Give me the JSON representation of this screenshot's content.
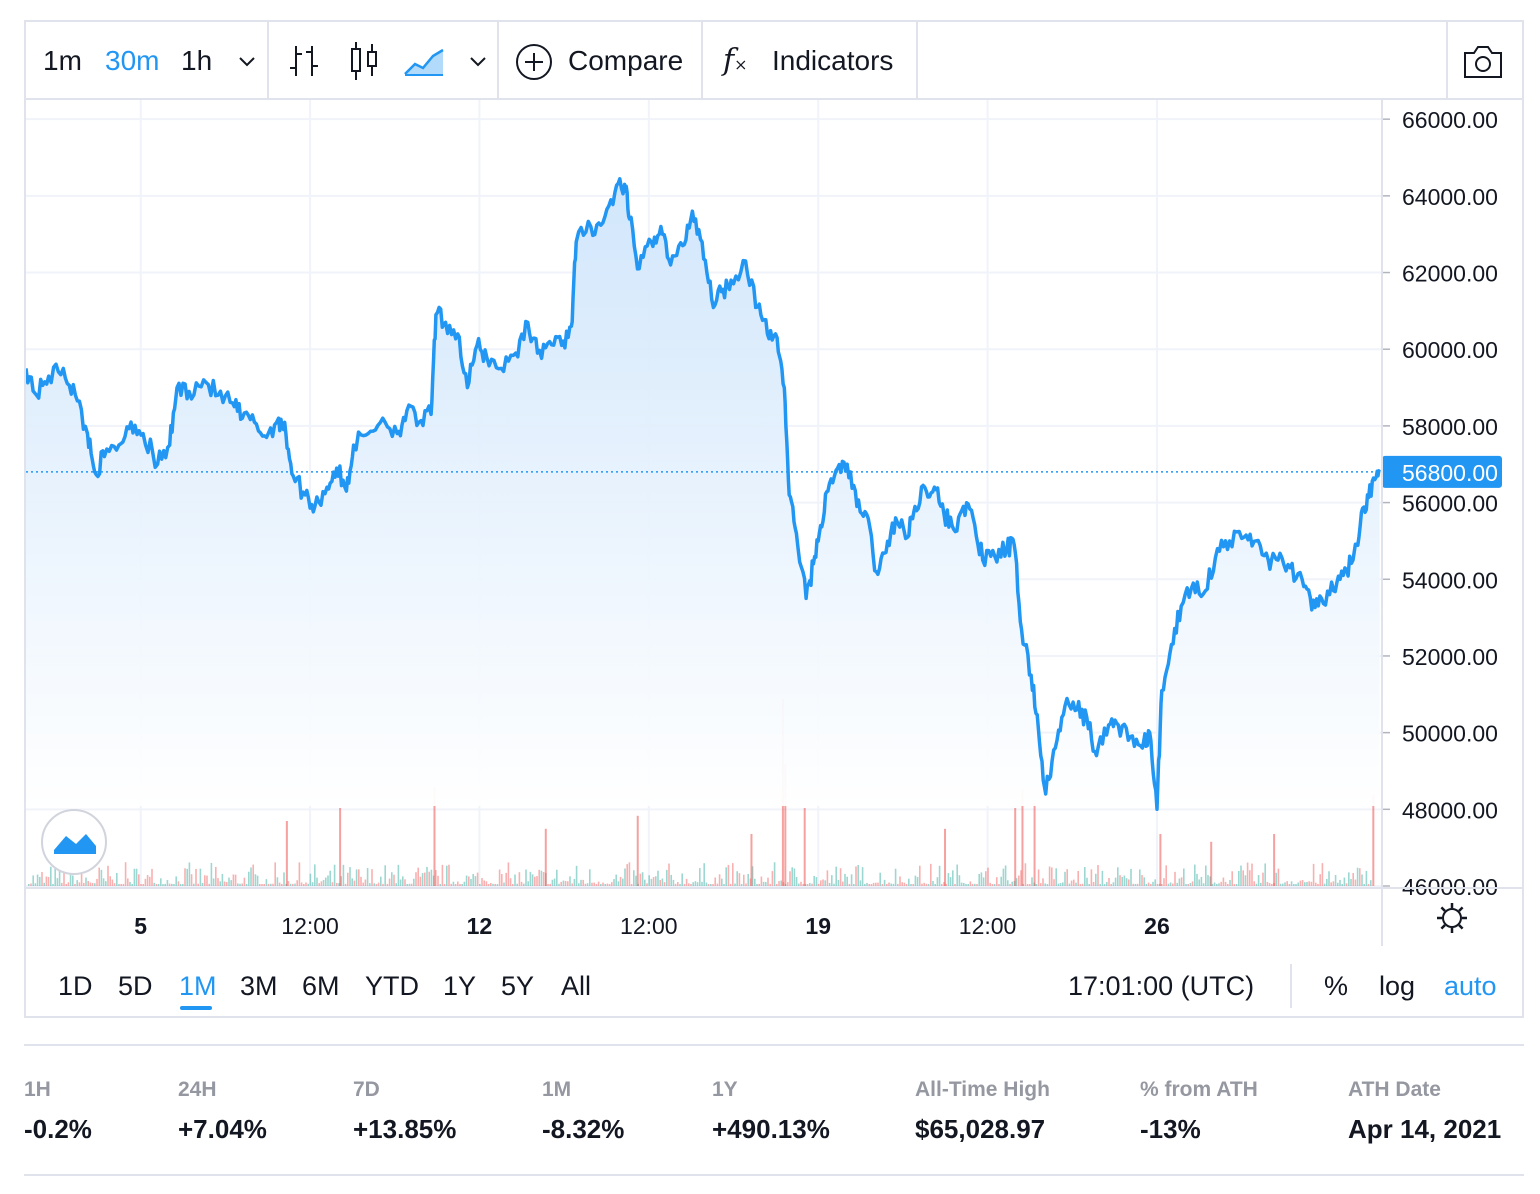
{
  "toolbar": {
    "intervals": [
      "1m",
      "30m",
      "1h"
    ],
    "active_interval": "30m",
    "compare_label": "Compare",
    "indicators_label": "Indicators",
    "icons": [
      "chevron-down-icon",
      "bars-icon",
      "candles-icon",
      "area-icon",
      "plus-circle-icon",
      "function-icon",
      "camera-icon"
    ]
  },
  "range_bar": {
    "ranges": [
      "1D",
      "5D",
      "1M",
      "3M",
      "6M",
      "YTD",
      "1Y",
      "5Y",
      "All"
    ],
    "active_range": "1M",
    "time_label": "17:01:00 (UTC)",
    "percent_label": "%",
    "log_label": "log",
    "auto_label": "auto"
  },
  "colors": {
    "line": "#2196f3",
    "area_top": "#cfe5fb",
    "volume_up": "#26a69a",
    "volume_down": "#ef5350",
    "last_price_tag": "#2196f3",
    "grid": "#f0f3fa"
  },
  "chart_data": {
    "type": "area",
    "title": "",
    "xlabel": "",
    "ylabel": "",
    "ylim": [
      46000,
      66500
    ],
    "yticks": [
      "66000.00",
      "64000.00",
      "62000.00",
      "60000.00",
      "58000.00",
      "56000.00",
      "54000.00",
      "52000.00",
      "50000.00",
      "48000.00",
      "46000.00"
    ],
    "xticks": [
      {
        "day": 5,
        "label": "5"
      },
      {
        "day": 8.5,
        "label": "12:00"
      },
      {
        "day": 12,
        "label": "12"
      },
      {
        "day": 15.5,
        "label": "12:00"
      },
      {
        "day": 19,
        "label": "19"
      },
      {
        "day": 22.5,
        "label": "12:00"
      },
      {
        "day": 26,
        "label": "26"
      }
    ],
    "xlim_days": [
      2.63,
      30.65
    ],
    "last_price": 56800,
    "last_price_label": "56800.00",
    "grid": true,
    "series": [
      {
        "values": [
          [
            2.63,
            59500
          ],
          [
            2.85,
            58800
          ],
          [
            3.1,
            59300
          ],
          [
            3.4,
            59500
          ],
          [
            3.65,
            58800
          ],
          [
            3.9,
            57800
          ],
          [
            4.05,
            56800
          ],
          [
            4.25,
            57200
          ],
          [
            4.55,
            57500
          ],
          [
            4.8,
            58100
          ],
          [
            5.05,
            57800
          ],
          [
            5.35,
            57000
          ],
          [
            5.6,
            57500
          ],
          [
            5.75,
            59000
          ],
          [
            6.0,
            58900
          ],
          [
            6.3,
            59200
          ],
          [
            6.6,
            58800
          ],
          [
            6.9,
            58600
          ],
          [
            7.1,
            58200
          ],
          [
            7.35,
            58100
          ],
          [
            7.6,
            57700
          ],
          [
            7.85,
            58200
          ],
          [
            8.0,
            57800
          ],
          [
            8.15,
            56700
          ],
          [
            8.4,
            56200
          ],
          [
            8.6,
            55900
          ],
          [
            8.85,
            56400
          ],
          [
            9.05,
            56900
          ],
          [
            9.25,
            56300
          ],
          [
            9.4,
            57500
          ],
          [
            9.7,
            57800
          ],
          [
            10.0,
            58200
          ],
          [
            10.3,
            57800
          ],
          [
            10.5,
            58400
          ],
          [
            10.75,
            58100
          ],
          [
            11.0,
            58300
          ],
          [
            11.1,
            60900
          ],
          [
            11.3,
            60700
          ],
          [
            11.55,
            60400
          ],
          [
            11.75,
            59000
          ],
          [
            11.95,
            60100
          ],
          [
            12.15,
            59800
          ],
          [
            12.45,
            59500
          ],
          [
            12.75,
            59900
          ],
          [
            13.0,
            60700
          ],
          [
            13.2,
            59900
          ],
          [
            13.45,
            60200
          ],
          [
            13.7,
            60100
          ],
          [
            13.9,
            60600
          ],
          [
            14.0,
            62800
          ],
          [
            14.3,
            63200
          ],
          [
            14.55,
            63300
          ],
          [
            14.8,
            64100
          ],
          [
            15.0,
            64300
          ],
          [
            15.1,
            63400
          ],
          [
            15.3,
            62100
          ],
          [
            15.55,
            62800
          ],
          [
            15.75,
            63200
          ],
          [
            15.95,
            62200
          ],
          [
            16.2,
            62700
          ],
          [
            16.4,
            63600
          ],
          [
            16.6,
            62800
          ],
          [
            16.8,
            61300
          ],
          [
            17.0,
            61500
          ],
          [
            17.2,
            61800
          ],
          [
            17.5,
            62300
          ],
          [
            17.75,
            61100
          ],
          [
            17.95,
            60400
          ],
          [
            18.15,
            60300
          ],
          [
            18.3,
            59000
          ],
          [
            18.4,
            56200
          ],
          [
            18.55,
            55200
          ],
          [
            18.75,
            53500
          ],
          [
            18.9,
            54400
          ],
          [
            19.05,
            55400
          ],
          [
            19.2,
            56300
          ],
          [
            19.4,
            56900
          ],
          [
            19.6,
            57000
          ],
          [
            19.8,
            55900
          ],
          [
            20.0,
            55700
          ],
          [
            20.2,
            54200
          ],
          [
            20.4,
            54700
          ],
          [
            20.6,
            55600
          ],
          [
            20.85,
            55100
          ],
          [
            21.0,
            55900
          ],
          [
            21.2,
            56400
          ],
          [
            21.4,
            56400
          ],
          [
            21.6,
            55700
          ],
          [
            21.8,
            55300
          ],
          [
            22.0,
            55900
          ],
          [
            22.2,
            55600
          ],
          [
            22.4,
            54500
          ],
          [
            22.65,
            54600
          ],
          [
            22.9,
            54800
          ],
          [
            23.05,
            54900
          ],
          [
            23.2,
            52700
          ],
          [
            23.4,
            51500
          ],
          [
            23.55,
            50100
          ],
          [
            23.7,
            48400
          ],
          [
            23.9,
            49600
          ],
          [
            24.1,
            50700
          ],
          [
            24.35,
            50600
          ],
          [
            24.55,
            50400
          ],
          [
            24.75,
            49400
          ],
          [
            25.0,
            50200
          ],
          [
            25.2,
            50200
          ],
          [
            25.45,
            49900
          ],
          [
            25.7,
            49600
          ],
          [
            25.85,
            50000
          ],
          [
            26.0,
            48000
          ],
          [
            26.1,
            51100
          ],
          [
            26.3,
            52300
          ],
          [
            26.5,
            53300
          ],
          [
            26.75,
            53900
          ],
          [
            27.0,
            53700
          ],
          [
            27.25,
            54800
          ],
          [
            27.5,
            55000
          ],
          [
            27.8,
            55100
          ],
          [
            28.05,
            55000
          ],
          [
            28.3,
            54500
          ],
          [
            28.5,
            54500
          ],
          [
            28.75,
            54300
          ],
          [
            29.0,
            54000
          ],
          [
            29.2,
            53200
          ],
          [
            29.4,
            53500
          ],
          [
            29.65,
            53700
          ],
          [
            29.85,
            54100
          ],
          [
            30.05,
            54500
          ],
          [
            30.2,
            55400
          ],
          [
            30.35,
            56200
          ],
          [
            30.5,
            56600
          ],
          [
            30.6,
            56800
          ]
        ]
      }
    ],
    "volume_spikes": [
      [
        8.0,
        0.25
      ],
      [
        9.1,
        0.3
      ],
      [
        11.05,
        0.38
      ],
      [
        13.35,
        0.22
      ],
      [
        15.25,
        0.27
      ],
      [
        17.6,
        0.2
      ],
      [
        18.25,
        0.72
      ],
      [
        18.3,
        0.47
      ],
      [
        18.7,
        0.3
      ],
      [
        21.6,
        0.22
      ],
      [
        23.05,
        0.3
      ],
      [
        23.2,
        0.37
      ],
      [
        23.45,
        0.32
      ],
      [
        26.05,
        0.2
      ],
      [
        27.1,
        0.17
      ],
      [
        28.4,
        0.2
      ],
      [
        30.45,
        0.35
      ]
    ]
  }
}
